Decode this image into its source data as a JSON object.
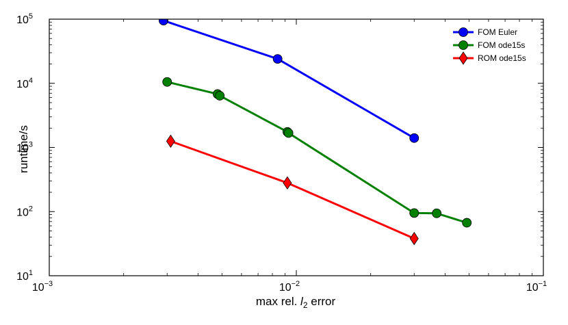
{
  "chart_data": {
    "type": "line",
    "xscale": "log",
    "yscale": "log",
    "xlim": [
      0.001,
      0.1
    ],
    "ylim": [
      10,
      100000
    ],
    "xlabel_prefix": "max rel. ",
    "xlabel_var": "l",
    "xlabel_sub": "2",
    "xlabel_suffix": " error",
    "ylabel": "runtime/s",
    "x_ticks": [
      {
        "base": "10",
        "exp": "−3",
        "value": 0.001
      },
      {
        "base": "10",
        "exp": "−2",
        "value": 0.01
      },
      {
        "base": "10",
        "exp": "−1",
        "value": 0.1
      }
    ],
    "y_ticks": [
      {
        "base": "10",
        "exp": "1",
        "value": 10
      },
      {
        "base": "10",
        "exp": "2",
        "value": 100
      },
      {
        "base": "10",
        "exp": "3",
        "value": 1000
      },
      {
        "base": "10",
        "exp": "4",
        "value": 10000
      },
      {
        "base": "10",
        "exp": "5",
        "value": 100000
      }
    ],
    "grid": false,
    "legend_position": "top-right",
    "series": [
      {
        "name": "FOM Euler",
        "color": "#0000ff",
        "marker": "circle",
        "points": [
          {
            "x": 0.0029,
            "y": 95000
          },
          {
            "x": 0.0084,
            "y": 24000
          },
          {
            "x": 0.03,
            "y": 1400
          }
        ]
      },
      {
        "name": "FOM ode15s",
        "color": "#008000",
        "marker": "circle",
        "points": [
          {
            "x": 0.003,
            "y": 10500
          },
          {
            "x": 0.0048,
            "y": 6800
          },
          {
            "x": 0.0049,
            "y": 6400
          },
          {
            "x": 0.0092,
            "y": 1750
          },
          {
            "x": 0.0093,
            "y": 1680
          },
          {
            "x": 0.03,
            "y": 95
          },
          {
            "x": 0.037,
            "y": 94
          },
          {
            "x": 0.049,
            "y": 67
          }
        ]
      },
      {
        "name": "ROM ode15s",
        "color": "#ff0000",
        "marker": "diamond",
        "points": [
          {
            "x": 0.0031,
            "y": 1250
          },
          {
            "x": 0.0092,
            "y": 280
          },
          {
            "x": 0.03,
            "y": 38
          }
        ]
      }
    ]
  }
}
